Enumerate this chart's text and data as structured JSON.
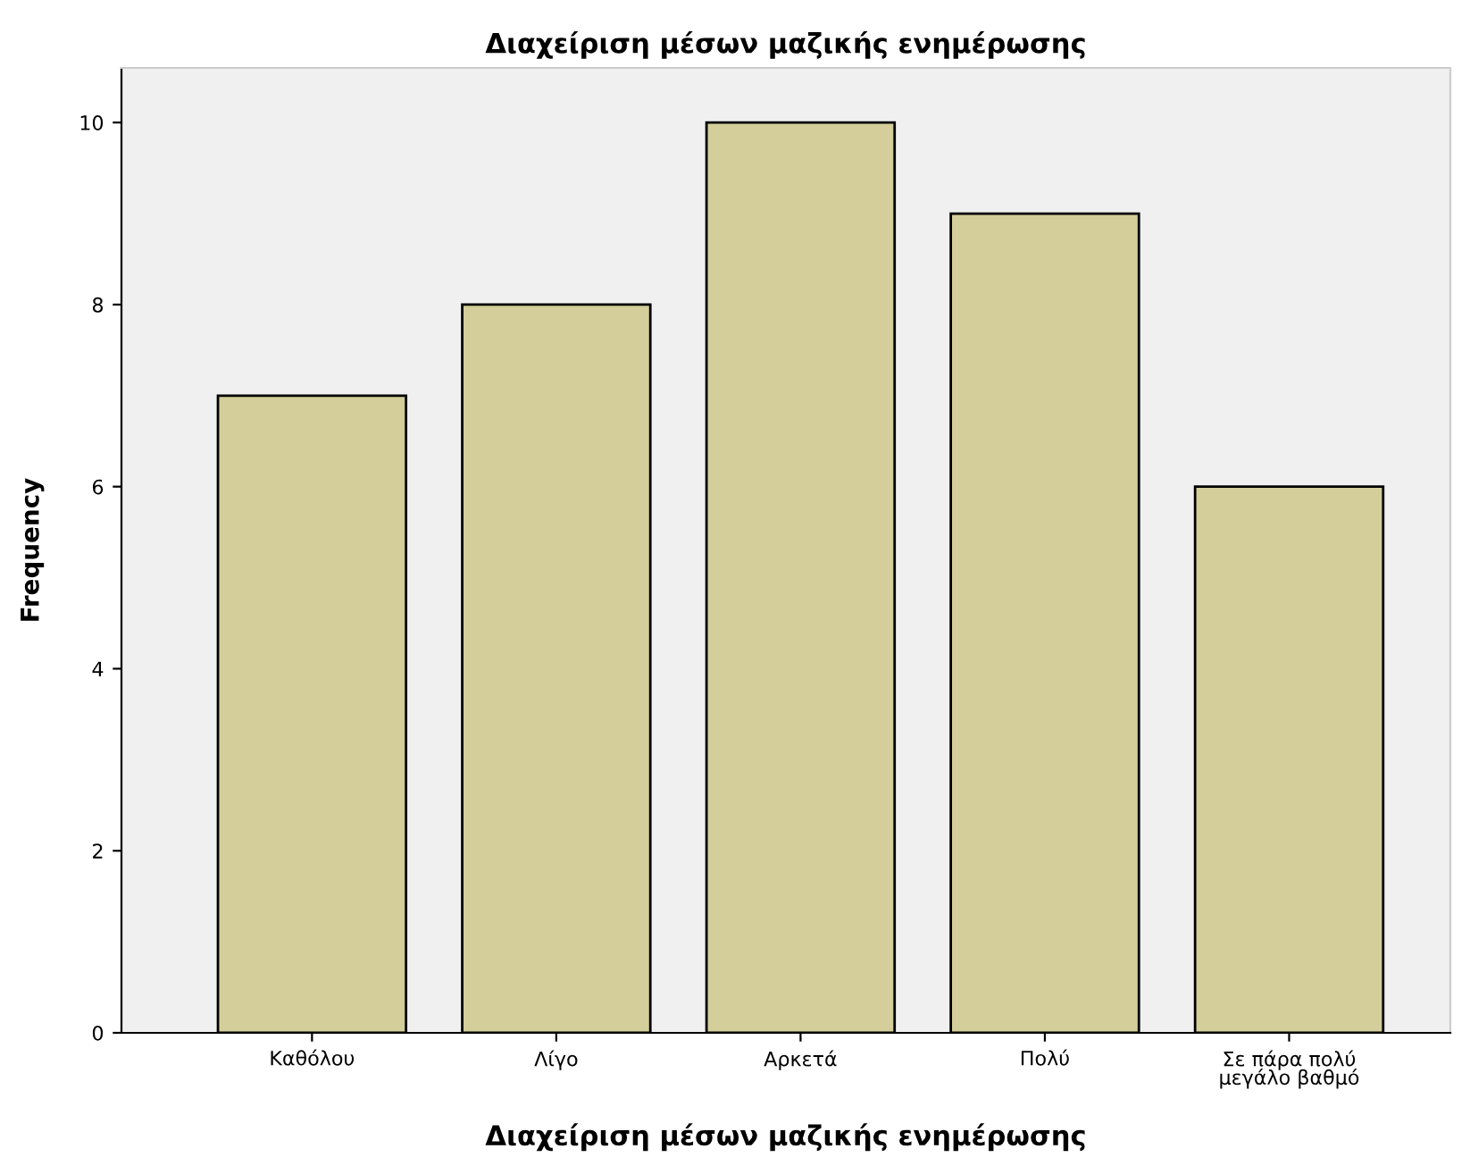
{
  "chart_data": {
    "type": "bar",
    "title": "Διαχείριση μέσων μαζικής ενημέρωσης",
    "xlabel": "Διαχείριση μέσων μαζικής ενημέρωσης",
    "ylabel": "Frequency",
    "categories": [
      "Καθόλου",
      "Λίγο",
      "Αρκετά",
      "Πολύ",
      "Σε πάρα πολύ\nμεγάλο βαθμό"
    ],
    "values": [
      7,
      8,
      10,
      9,
      6
    ],
    "color": "#d3ce9a",
    "ylim": [
      0,
      10.6
    ],
    "yticks": [
      0,
      2,
      4,
      6,
      8,
      10
    ],
    "grid": false
  }
}
